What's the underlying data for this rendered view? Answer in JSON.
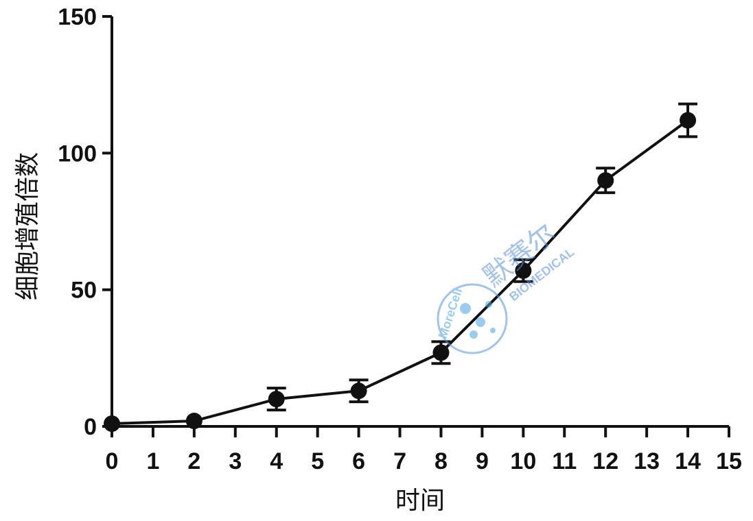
{
  "chart_data": {
    "type": "line",
    "title": "",
    "xlabel": "时间",
    "ylabel": "细胞增殖倍数",
    "xlim": [
      0,
      15
    ],
    "ylim": [
      0,
      150
    ],
    "x_ticks": [
      "0",
      "1",
      "2",
      "3",
      "4",
      "5",
      "6",
      "7",
      "8",
      "9",
      "10",
      "11",
      "12",
      "13",
      "14",
      "15"
    ],
    "y_ticks": [
      "0",
      "50",
      "100",
      "150"
    ],
    "grid": false,
    "legend": "none",
    "series": [
      {
        "color": "#111111",
        "marker": "circle",
        "x": [
          0,
          2,
          4,
          6,
          8,
          10,
          12,
          14
        ],
        "y": [
          1,
          2,
          10,
          13,
          27,
          57,
          90,
          112
        ],
        "error": [
          0,
          0,
          4,
          4,
          4,
          4,
          4.5,
          6
        ]
      }
    ]
  },
  "watermark": {
    "brand_cn": "默赛尔",
    "brand_en": "BIOMEDICAL",
    "logo_text": "MoreCell",
    "color": "#5b8fd6"
  }
}
